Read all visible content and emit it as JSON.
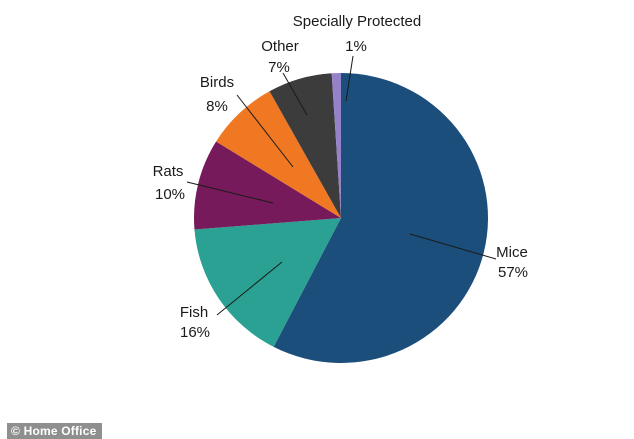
{
  "page": {
    "background_color": "#ffffff",
    "text_color": "#1a1a1a"
  },
  "watermark": {
    "text": "© Home Office",
    "bg_color": "#8f8f8f",
    "text_color": "#ffffff"
  },
  "chart_data": {
    "type": "pie",
    "title": "",
    "direction": "clockwise",
    "start_angle_deg": 0,
    "legend_position": "none",
    "label_style": "outside with leader lines, category name above percent value",
    "slices": [
      {
        "label": "Mice",
        "value_pct": 57,
        "display": "57%",
        "color": "#1C4E7C"
      },
      {
        "label": "Fish",
        "value_pct": 16,
        "display": "16%",
        "color": "#2AA192"
      },
      {
        "label": "Rats",
        "value_pct": 10,
        "display": "10%",
        "color": "#771A5B"
      },
      {
        "label": "Birds",
        "value_pct": 8,
        "display": "8%",
        "color": "#F07822"
      },
      {
        "label": "Other",
        "value_pct": 7,
        "display": "7%",
        "color": "#3C3C3C"
      },
      {
        "label": "Specially Protected",
        "value_pct": 1,
        "display": "1%",
        "color": "#9682C8"
      }
    ],
    "leader_line_color": "#1a1a1a"
  }
}
